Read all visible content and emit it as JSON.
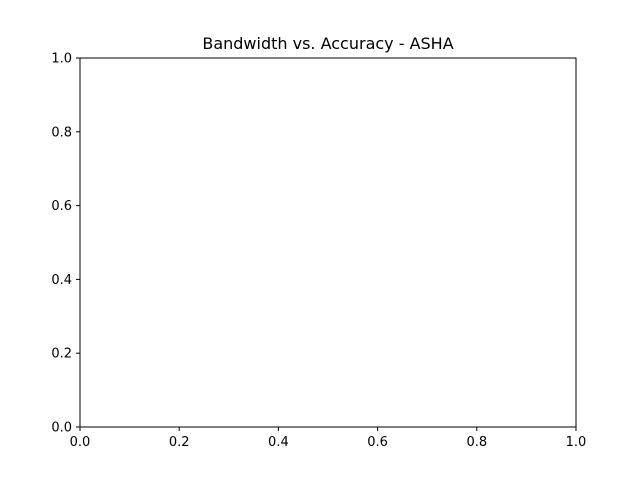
{
  "chart_data": {
    "type": "scatter",
    "title": "Bandwidth vs. Accuracy - ASHA",
    "xlabel": "",
    "ylabel": "",
    "xlim": [
      0.0,
      1.0
    ],
    "ylim": [
      0.0,
      1.0
    ],
    "x_ticks": [
      "0.0",
      "0.2",
      "0.4",
      "0.6",
      "0.8",
      "1.0"
    ],
    "y_ticks": [
      "0.0",
      "0.2",
      "0.4",
      "0.6",
      "0.8",
      "1.0"
    ],
    "grid": false,
    "legend": "none",
    "series": []
  }
}
